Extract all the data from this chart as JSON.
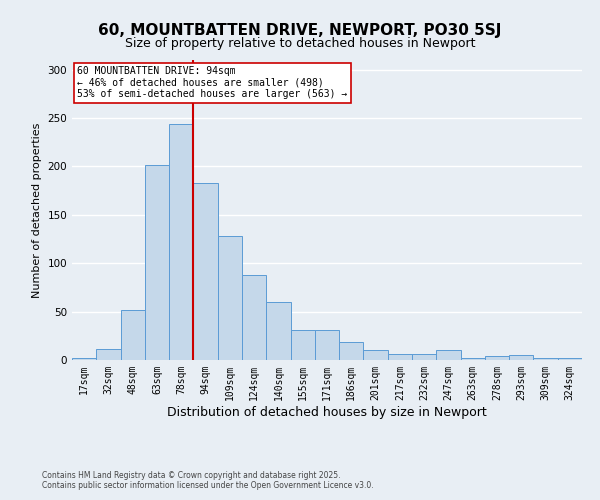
{
  "title": "60, MOUNTBATTEN DRIVE, NEWPORT, PO30 5SJ",
  "subtitle": "Size of property relative to detached houses in Newport",
  "xlabel": "Distribution of detached houses by size in Newport",
  "ylabel": "Number of detached properties",
  "categories": [
    "17sqm",
    "32sqm",
    "48sqm",
    "63sqm",
    "78sqm",
    "94sqm",
    "109sqm",
    "124sqm",
    "140sqm",
    "155sqm",
    "171sqm",
    "186sqm",
    "201sqm",
    "217sqm",
    "232sqm",
    "247sqm",
    "263sqm",
    "278sqm",
    "293sqm",
    "309sqm",
    "324sqm"
  ],
  "bar_heights": [
    2,
    11,
    52,
    202,
    244,
    183,
    128,
    88,
    60,
    31,
    31,
    19,
    10,
    6,
    6,
    10,
    2,
    4,
    5,
    2,
    2
  ],
  "bar_color": "#c5d8ea",
  "bar_edgecolor": "#5b9bd5",
  "red_line_index": 5,
  "red_line_color": "#cc0000",
  "annotation_text": "60 MOUNTBATTEN DRIVE: 94sqm\n← 46% of detached houses are smaller (498)\n53% of semi-detached houses are larger (563) →",
  "annotation_box_facecolor": "#ffffff",
  "annotation_box_edgecolor": "#cc0000",
  "ylim": [
    0,
    310
  ],
  "yticks": [
    0,
    50,
    100,
    150,
    200,
    250,
    300
  ],
  "footnote1": "Contains HM Land Registry data © Crown copyright and database right 2025.",
  "footnote2": "Contains public sector information licensed under the Open Government Licence v3.0.",
  "bg_color": "#e8eef4",
  "grid_color": "#ffffff",
  "title_fontsize": 11,
  "subtitle_fontsize": 9,
  "tick_fontsize": 7,
  "ylabel_fontsize": 8,
  "xlabel_fontsize": 9,
  "annotation_fontsize": 7,
  "footnote_fontsize": 5.5
}
